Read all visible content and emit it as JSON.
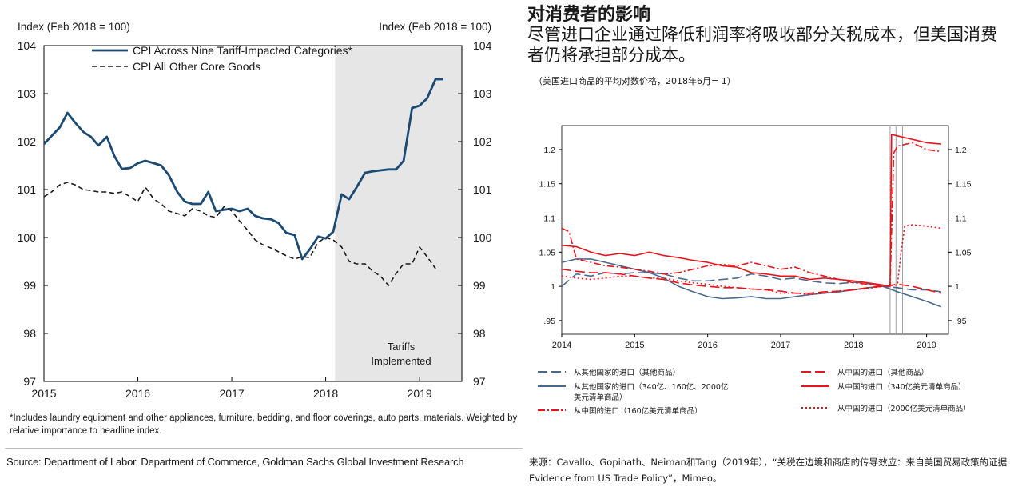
{
  "left_footnote": "*Includes laundry equipment and other appliances, furniture, bedding, and floor coverings, auto parts, materials. Weighted by relative importance to headline index.",
  "left_source": "Source: Department of Labor, Department of Commerce, Goldman Sachs Global Investment Research",
  "right_title": "对消费者的影响",
  "right_subtitle": "尽管进口企业通过降低利润率将吸收部分关税成本，但美国消费者仍将承担部分成本。",
  "right_note": "（美国进口商品的平均对数价格，2018年6月= 1）",
  "right_source": "来源：Cavallo、Gopinath、Neiman和Tang（2019年），“关税在边境和商店的传导效应：来自美国贸易政策的证据Evidence from US Trade Policy”，Mimeo。",
  "chart_data": [
    {
      "type": "line",
      "ylabel_left": "Index (Feb 2018 = 100)",
      "ylabel_right": "Index (Feb 2018 = 100)",
      "ylim": [
        97,
        104
      ],
      "xlim": [
        2015.0,
        2019.45
      ],
      "yticks": [
        "97",
        "98",
        "99",
        "100",
        "101",
        "102",
        "103",
        "104"
      ],
      "xticks": [
        "2015",
        "2016",
        "2017",
        "2018",
        "2019"
      ],
      "shaded_region": {
        "from": 2018.1,
        "to": 2019.45,
        "label_line1": "Tariffs",
        "label_line2": "Implemented"
      },
      "series": [
        {
          "name": "CPI Across Nine Tariff-Impacted Categories*",
          "color": "#1c4a72",
          "style": "solid",
          "x": [
            2015.0,
            2015.17,
            2015.25,
            2015.33,
            2015.42,
            2015.5,
            2015.58,
            2015.67,
            2015.75,
            2015.83,
            2015.92,
            2016.0,
            2016.08,
            2016.17,
            2016.25,
            2016.33,
            2016.42,
            2016.5,
            2016.58,
            2016.67,
            2016.75,
            2016.83,
            2016.92,
            2017.0,
            2017.08,
            2017.17,
            2017.25,
            2017.33,
            2017.42,
            2017.5,
            2017.58,
            2017.67,
            2017.75,
            2017.83,
            2017.92,
            2018.0,
            2018.08,
            2018.17,
            2018.25,
            2018.33,
            2018.42,
            2018.5,
            2018.58,
            2018.67,
            2018.75,
            2018.83,
            2018.92,
            2019.0,
            2019.08,
            2019.17,
            2019.25
          ],
          "values": [
            101.95,
            102.3,
            102.6,
            102.4,
            102.2,
            102.1,
            101.92,
            102.1,
            101.7,
            101.43,
            101.45,
            101.55,
            101.6,
            101.55,
            101.5,
            101.3,
            100.95,
            100.75,
            100.7,
            100.7,
            100.95,
            100.55,
            100.58,
            100.6,
            100.55,
            100.6,
            100.45,
            100.4,
            100.38,
            100.3,
            100.1,
            100.05,
            99.55,
            99.75,
            100.02,
            99.98,
            100.12,
            100.9,
            100.8,
            101.05,
            101.35,
            101.38,
            101.4,
            101.42,
            101.42,
            101.6,
            102.7,
            102.75,
            102.9,
            103.3,
            103.3
          ]
        },
        {
          "name": "CPI All Other Core Goods",
          "color": "#1a1a1a",
          "style": "dashed",
          "x": [
            2015.0,
            2015.08,
            2015.17,
            2015.25,
            2015.33,
            2015.42,
            2015.5,
            2015.58,
            2015.67,
            2015.75,
            2015.83,
            2015.92,
            2016.0,
            2016.08,
            2016.17,
            2016.25,
            2016.33,
            2016.42,
            2016.5,
            2016.58,
            2016.67,
            2016.75,
            2016.83,
            2016.92,
            2017.0,
            2017.08,
            2017.17,
            2017.25,
            2017.33,
            2017.42,
            2017.5,
            2017.58,
            2017.67,
            2017.75,
            2017.83,
            2017.92,
            2018.0,
            2018.08,
            2018.17,
            2018.25,
            2018.33,
            2018.42,
            2018.5,
            2018.58,
            2018.67,
            2018.75,
            2018.83,
            2018.92,
            2019.0,
            2019.08,
            2019.17
          ],
          "values": [
            100.85,
            100.95,
            101.1,
            101.15,
            101.1,
            101.0,
            100.98,
            100.95,
            100.95,
            100.92,
            100.95,
            100.85,
            100.75,
            101.05,
            100.8,
            100.7,
            100.55,
            100.5,
            100.45,
            100.6,
            100.55,
            100.45,
            100.42,
            100.65,
            100.55,
            100.35,
            100.15,
            99.95,
            99.85,
            99.78,
            99.7,
            99.62,
            99.55,
            99.6,
            99.58,
            99.9,
            100.0,
            99.95,
            99.8,
            99.5,
            99.45,
            99.45,
            99.3,
            99.2,
            99.0,
            99.25,
            99.45,
            99.45,
            99.8,
            99.6,
            99.35
          ]
        }
      ]
    },
    {
      "type": "line",
      "ylim": [
        0.93,
        1.235
      ],
      "xlim": [
        2014.0,
        2019.3
      ],
      "yticks": [
        ".95",
        "1",
        "1.05",
        "1.1",
        "1.15",
        "1.2"
      ],
      "xticks": [
        "2014",
        "2015",
        "2016",
        "2017",
        "2018",
        "2019"
      ],
      "vlines": [
        2018.5,
        2018.58,
        2018.67
      ],
      "series": [
        {
          "name": "从其他国家的进口（其他商品）",
          "color": "#4a6a8c",
          "style": "longdash",
          "x": [
            2014.0,
            2014.2,
            2014.4,
            2014.6,
            2014.8,
            2015.0,
            2015.2,
            2015.4,
            2015.6,
            2015.8,
            2016.0,
            2016.2,
            2016.4,
            2016.6,
            2016.8,
            2017.0,
            2017.2,
            2017.4,
            2017.6,
            2017.8,
            2018.0,
            2018.2,
            2018.4,
            2018.6,
            2018.8,
            2019.0,
            2019.2
          ],
          "values": [
            1.0,
            1.018,
            1.015,
            1.02,
            1.018,
            1.02,
            1.02,
            1.018,
            1.012,
            1.008,
            1.008,
            1.01,
            1.012,
            1.018,
            1.015,
            1.01,
            1.012,
            1.008,
            1.005,
            1.004,
            1.006,
            1.004,
            1.0,
            0.998,
            0.995,
            0.995,
            0.992
          ]
        },
        {
          "name": "从其他国家的进口（340亿、160亿、2000亿美元清单商品）",
          "color": "#4a6a8c",
          "style": "solid",
          "x": [
            2014.0,
            2014.2,
            2014.4,
            2014.6,
            2014.8,
            2015.0,
            2015.2,
            2015.4,
            2015.6,
            2015.8,
            2016.0,
            2016.2,
            2016.4,
            2016.6,
            2016.8,
            2017.0,
            2017.2,
            2017.4,
            2017.6,
            2017.8,
            2018.0,
            2018.2,
            2018.4,
            2018.6,
            2018.8,
            2019.0,
            2019.2
          ],
          "values": [
            1.035,
            1.04,
            1.04,
            1.035,
            1.03,
            1.025,
            1.02,
            1.012,
            1.0,
            0.992,
            0.985,
            0.982,
            0.983,
            0.985,
            0.982,
            0.982,
            0.985,
            0.988,
            0.99,
            0.992,
            0.995,
            0.998,
            1.0,
            0.992,
            0.985,
            0.978,
            0.97
          ]
        },
        {
          "name": "从中国的进口（160亿美元清单商品）",
          "color": "#e8141b",
          "style": "dashdot",
          "x": [
            2014.0,
            2014.1,
            2014.2,
            2014.4,
            2014.6,
            2014.8,
            2015.0,
            2015.2,
            2015.4,
            2015.6,
            2015.8,
            2016.0,
            2016.2,
            2016.4,
            2016.6,
            2016.8,
            2017.0,
            2017.2,
            2017.4,
            2017.6,
            2017.8,
            2018.0,
            2018.2,
            2018.4,
            2018.5,
            2018.55,
            2018.6,
            2018.8,
            2019.0,
            2019.2
          ],
          "values": [
            1.085,
            1.08,
            1.04,
            1.035,
            1.03,
            1.028,
            1.025,
            1.022,
            1.018,
            1.02,
            1.025,
            1.03,
            1.032,
            1.03,
            1.035,
            1.03,
            1.025,
            1.028,
            1.02,
            1.015,
            1.01,
            1.005,
            1.003,
            1.0,
            1.0,
            1.195,
            1.205,
            1.21,
            1.2,
            1.197
          ]
        },
        {
          "name": "从中国的进口（其他商品）",
          "color": "#e8141b",
          "style": "longdash",
          "x": [
            2014.0,
            2014.2,
            2014.4,
            2014.6,
            2014.8,
            2015.0,
            2015.2,
            2015.4,
            2015.6,
            2015.8,
            2016.0,
            2016.2,
            2016.4,
            2016.6,
            2016.8,
            2017.0,
            2017.2,
            2017.4,
            2017.6,
            2017.8,
            2018.0,
            2018.2,
            2018.4,
            2018.6,
            2018.8,
            2019.0,
            2019.2
          ],
          "values": [
            1.025,
            1.022,
            1.02,
            1.02,
            1.018,
            1.015,
            1.012,
            1.01,
            1.005,
            1.002,
            1.0,
            0.998,
            0.998,
            0.996,
            0.995,
            0.993,
            0.99,
            0.99,
            0.992,
            0.993,
            0.995,
            0.998,
            1.0,
            1.003,
            1.0,
            0.995,
            0.99
          ]
        },
        {
          "name": "从中国的进口（340亿美元清单商品）",
          "color": "#e8141b",
          "style": "solid",
          "x": [
            2014.0,
            2014.2,
            2014.4,
            2014.6,
            2014.8,
            2015.0,
            2015.2,
            2015.4,
            2015.6,
            2015.8,
            2016.0,
            2016.2,
            2016.4,
            2016.6,
            2016.8,
            2017.0,
            2017.2,
            2017.4,
            2017.6,
            2017.8,
            2018.0,
            2018.2,
            2018.4,
            2018.5,
            2018.52,
            2018.6,
            2018.8,
            2019.0,
            2019.2
          ],
          "values": [
            1.06,
            1.058,
            1.05,
            1.045,
            1.048,
            1.045,
            1.05,
            1.045,
            1.042,
            1.038,
            1.035,
            1.03,
            1.028,
            1.02,
            1.018,
            1.015,
            1.015,
            1.01,
            1.012,
            1.01,
            1.008,
            1.005,
            1.002,
            1.0,
            1.222,
            1.22,
            1.215,
            1.21,
            1.208
          ]
        },
        {
          "name": "从中国的进口（2000亿美元清单商品）",
          "color": "#e8141b",
          "style": "dotted",
          "x": [
            2014.0,
            2014.2,
            2014.4,
            2014.6,
            2014.8,
            2015.0,
            2015.2,
            2015.4,
            2015.6,
            2015.8,
            2016.0,
            2016.2,
            2016.4,
            2016.6,
            2016.8,
            2017.0,
            2017.2,
            2017.4,
            2017.6,
            2017.8,
            2018.0,
            2018.2,
            2018.4,
            2018.6,
            2018.65,
            2018.7,
            2018.8,
            2019.0,
            2019.2
          ],
          "values": [
            1.015,
            1.012,
            1.01,
            1.012,
            1.015,
            1.015,
            1.012,
            1.012,
            1.008,
            1.005,
            1.003,
            1.0,
            0.998,
            0.996,
            0.995,
            0.99,
            0.99,
            0.988,
            0.99,
            0.993,
            0.995,
            0.997,
            1.0,
            1.002,
            1.05,
            1.088,
            1.09,
            1.088,
            1.085
          ]
        }
      ]
    }
  ]
}
